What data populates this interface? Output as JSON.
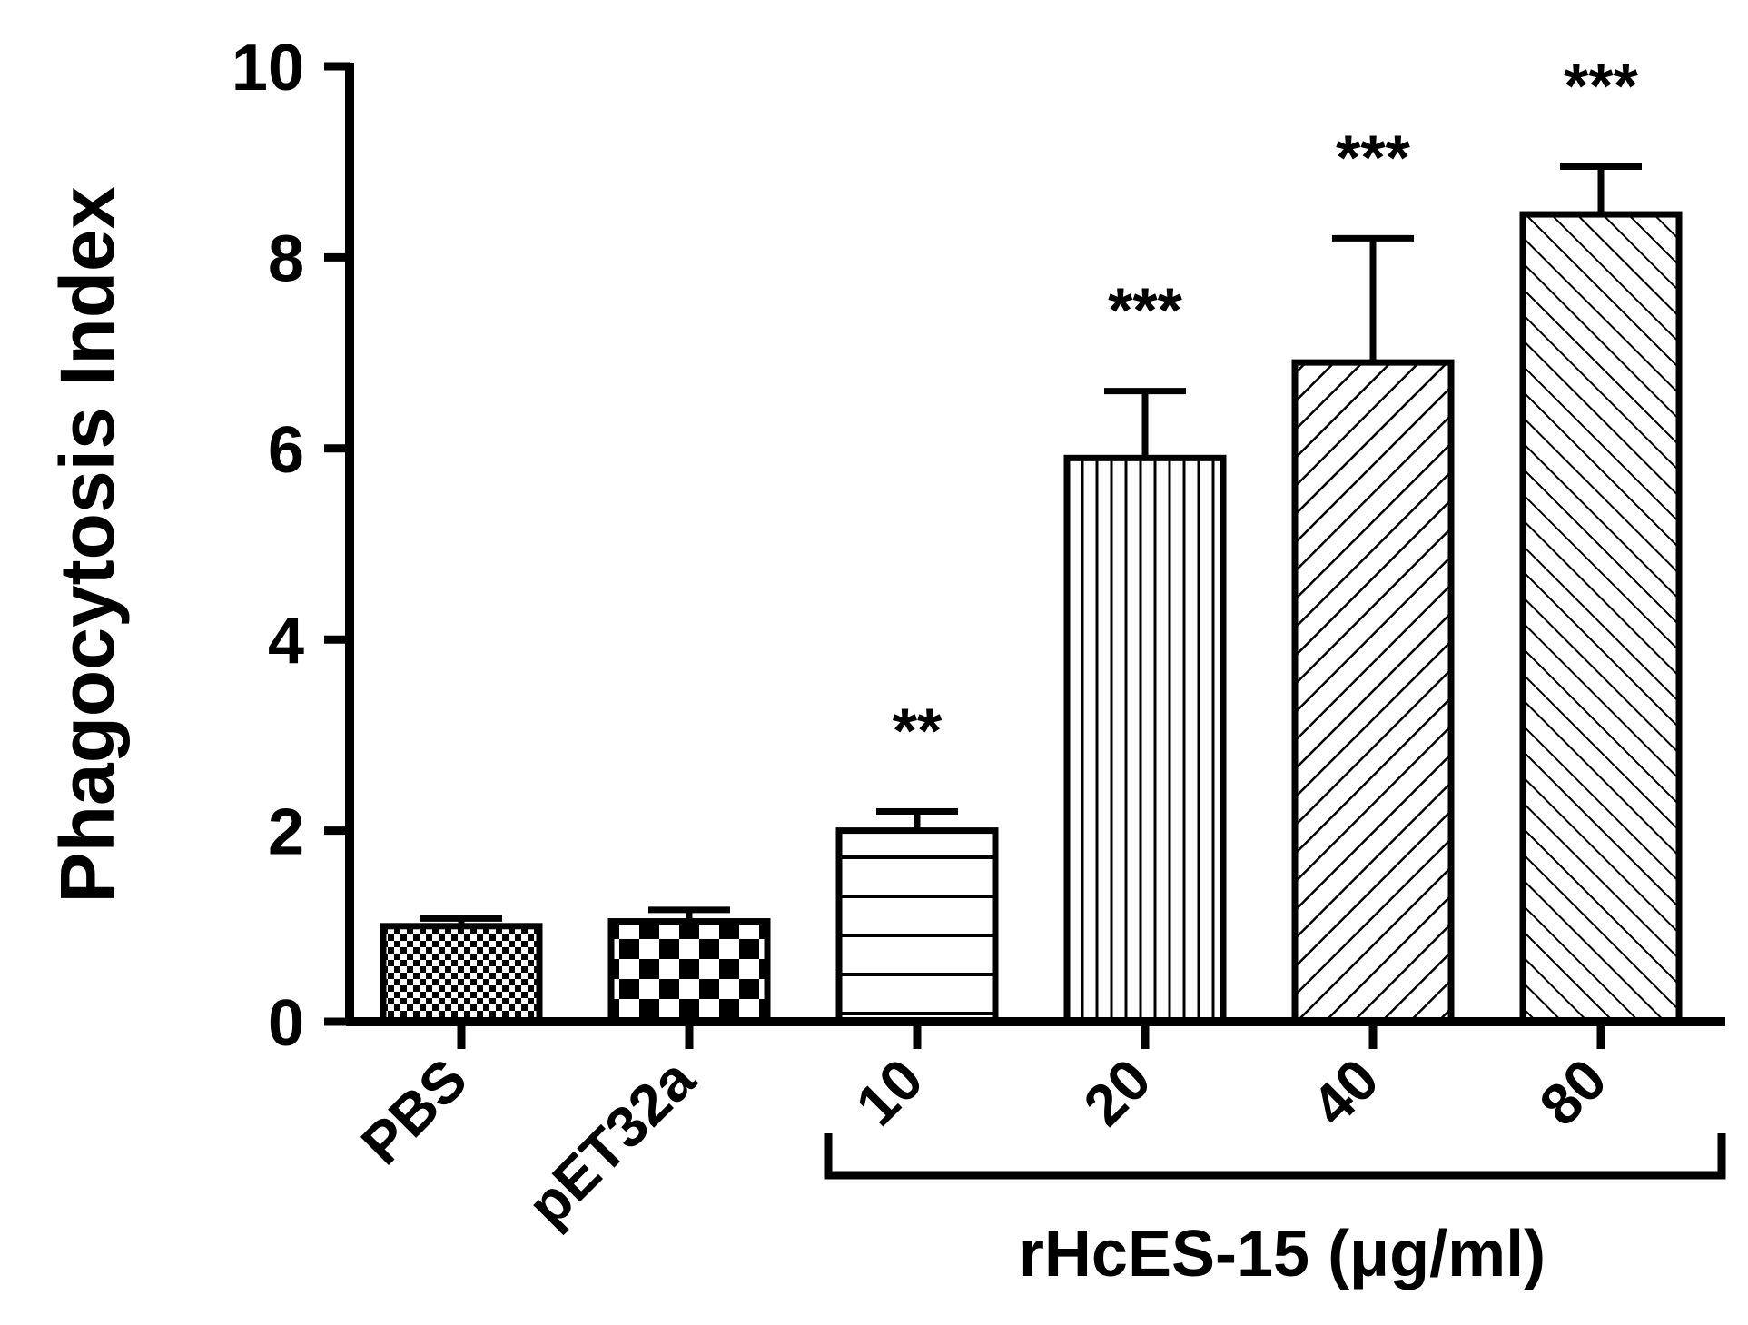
{
  "chart_data": {
    "type": "bar",
    "categories": [
      "PBS",
      "pET32a",
      "10",
      "20",
      "40",
      "80"
    ],
    "values": [
      1.0,
      1.05,
      2.0,
      5.9,
      6.9,
      8.45
    ],
    "errors": [
      0.08,
      0.12,
      0.2,
      0.7,
      1.3,
      0.5
    ],
    "significance": [
      "",
      "",
      "**",
      "***",
      "***",
      "***"
    ],
    "patterns": [
      "fine-checker",
      "coarse-checker",
      "horizontal-lines",
      "vertical-lines",
      "diagonal-up",
      "diagonal-down"
    ],
    "ylabel": "Phagocytosis Index",
    "ylim": [
      0,
      10
    ],
    "yticks": [
      0,
      2,
      4,
      6,
      8,
      10
    ],
    "group_label": "rHcES-15 (μg/ml)",
    "group_categories": [
      "10",
      "20",
      "40",
      "80"
    ],
    "grid": false,
    "colors": {
      "bar_fill": "#ffffff",
      "stroke": "#000000"
    }
  }
}
